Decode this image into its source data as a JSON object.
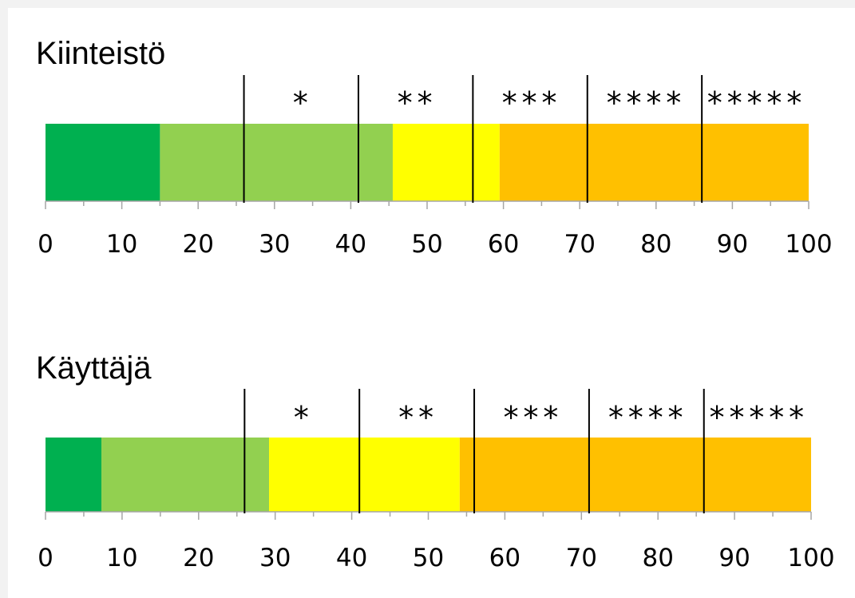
{
  "chart_data": [
    {
      "type": "bar",
      "title": "Kiinteistö",
      "xlim": [
        0,
        100
      ],
      "ticks": [
        0,
        10,
        20,
        30,
        40,
        50,
        60,
        70,
        80,
        90,
        100
      ],
      "segments": [
        {
          "start": 0,
          "end": 15,
          "color": "#00b050"
        },
        {
          "start": 15,
          "end": 45.5,
          "color": "#92d050"
        },
        {
          "start": 45.5,
          "end": 59.5,
          "color": "#ffff00"
        },
        {
          "start": 59.5,
          "end": 100,
          "color": "#ffc000"
        }
      ],
      "thresholds": [
        26,
        41,
        56,
        71,
        86
      ],
      "rating_labels": [
        "*",
        "**",
        "***",
        "****",
        "*****"
      ]
    },
    {
      "type": "bar",
      "title": "Käyttäjä",
      "xlim": [
        0,
        100
      ],
      "ticks": [
        0,
        10,
        20,
        30,
        40,
        50,
        60,
        70,
        80,
        90,
        100
      ],
      "segments": [
        {
          "start": 0,
          "end": 7.3,
          "color": "#00b050"
        },
        {
          "start": 7.3,
          "end": 29.2,
          "color": "#92d050"
        },
        {
          "start": 29.2,
          "end": 54.1,
          "color": "#ffff00"
        },
        {
          "start": 54.1,
          "end": 100,
          "color": "#ffc000"
        }
      ],
      "thresholds": [
        26,
        41,
        56,
        71,
        86
      ],
      "rating_labels": [
        "*",
        "**",
        "***",
        "****",
        "*****"
      ]
    }
  ]
}
